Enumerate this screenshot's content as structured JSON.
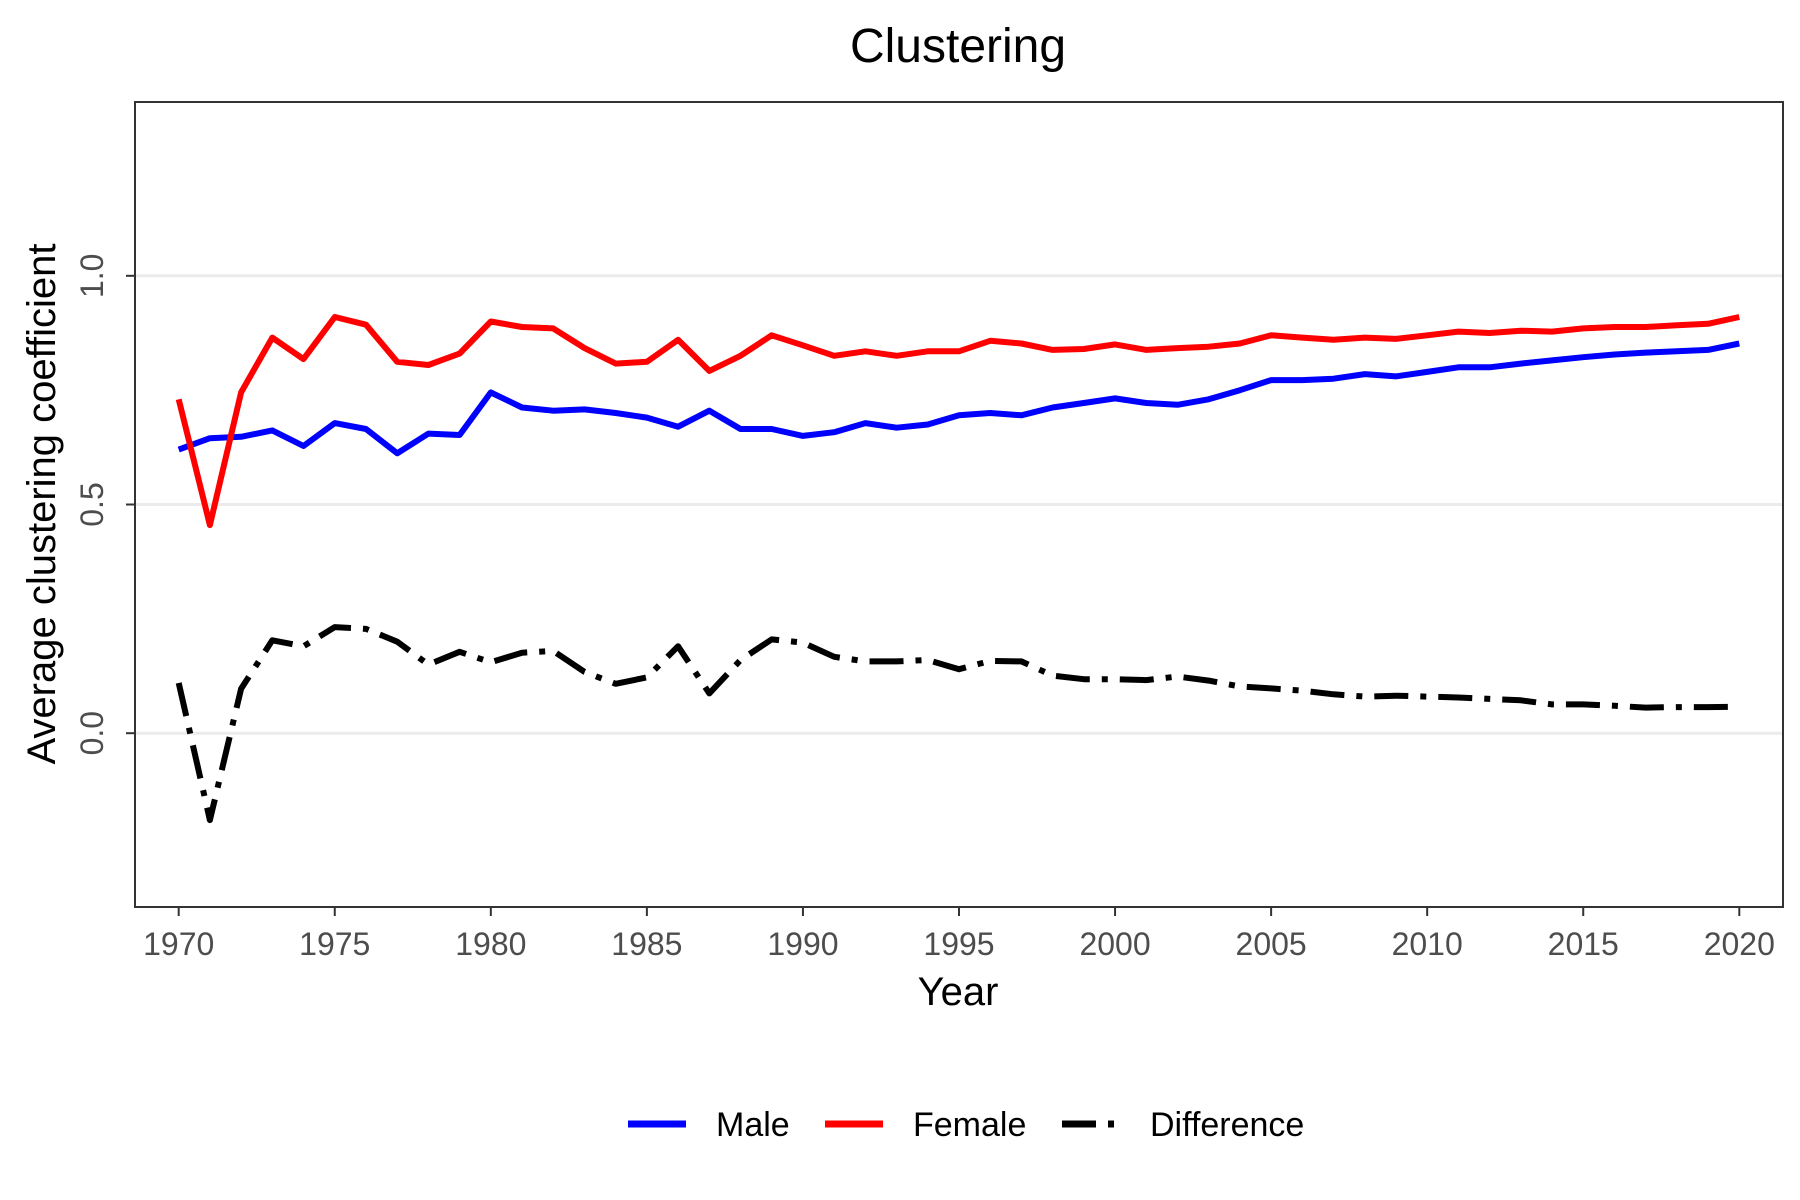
{
  "chart_data": {
    "type": "line",
    "title": "Clustering",
    "xlabel": "Year",
    "ylabel": "Average clustering coefficient",
    "xlim": [
      1968.6,
      2021.4
    ],
    "ylim": [
      -0.38,
      1.38
    ],
    "x_ticks": [
      "1970",
      "1975",
      "1980",
      "1985",
      "1990",
      "1995",
      "2000",
      "2005",
      "2010",
      "2015",
      "2020"
    ],
    "y_ticks": [
      "0.0",
      "0.5",
      "1.0"
    ],
    "grid": "horizontal major gridlines",
    "legend_position": "bottom",
    "x": [
      1970,
      1971,
      1972,
      1973,
      1974,
      1975,
      1976,
      1977,
      1978,
      1979,
      1980,
      1981,
      1982,
      1983,
      1984,
      1985,
      1986,
      1987,
      1988,
      1989,
      1990,
      1991,
      1992,
      1993,
      1994,
      1995,
      1996,
      1997,
      1998,
      1999,
      2000,
      2001,
      2002,
      2003,
      2004,
      2005,
      2006,
      2007,
      2008,
      2009,
      2010,
      2011,
      2012,
      2013,
      2014,
      2015,
      2016,
      2017,
      2018,
      2019,
      2020
    ],
    "series": [
      {
        "name": "Male",
        "color": "#0000ff",
        "style": "solid",
        "values": [
          0.62,
          0.645,
          0.648,
          0.662,
          0.628,
          0.678,
          0.665,
          0.612,
          0.655,
          0.652,
          0.745,
          0.712,
          0.705,
          0.708,
          0.7,
          0.69,
          0.67,
          0.705,
          0.665,
          0.665,
          0.65,
          0.658,
          0.678,
          0.668,
          0.675,
          0.695,
          0.7,
          0.695,
          0.712,
          0.722,
          0.732,
          0.722,
          0.718,
          0.73,
          0.75,
          0.772,
          0.772,
          0.775,
          0.785,
          0.78,
          0.79,
          0.8,
          0.8,
          0.808,
          0.815,
          0.822,
          0.828,
          0.832,
          0.835,
          0.838,
          0.852
        ]
      },
      {
        "name": "Female",
        "color": "#ff0000",
        "style": "solid",
        "values": [
          0.73,
          0.455,
          0.745,
          0.865,
          0.818,
          0.91,
          0.893,
          0.812,
          0.805,
          0.83,
          0.9,
          0.888,
          0.885,
          0.842,
          0.808,
          0.812,
          0.86,
          0.792,
          0.825,
          0.87,
          0.848,
          0.825,
          0.835,
          0.825,
          0.835,
          0.835,
          0.858,
          0.852,
          0.838,
          0.84,
          0.85,
          0.838,
          0.842,
          0.845,
          0.852,
          0.87,
          0.865,
          0.86,
          0.865,
          0.862,
          0.87,
          0.878,
          0.875,
          0.88,
          0.878,
          0.885,
          0.888,
          0.888,
          0.892,
          0.895,
          0.91
        ]
      },
      {
        "name": "Difference",
        "color": "#000000",
        "style": "dashed",
        "values": [
          0.11,
          -0.19,
          0.097,
          0.203,
          0.19,
          0.232,
          0.228,
          0.2,
          0.15,
          0.178,
          0.155,
          0.176,
          0.18,
          0.134,
          0.108,
          0.122,
          0.19,
          0.087,
          0.16,
          0.205,
          0.198,
          0.167,
          0.157,
          0.157,
          0.16,
          0.14,
          0.158,
          0.157,
          0.126,
          0.118,
          0.118,
          0.116,
          0.124,
          0.115,
          0.102,
          0.098,
          0.093,
          0.085,
          0.08,
          0.082,
          0.08,
          0.078,
          0.075,
          0.072,
          0.063,
          0.063,
          0.06,
          0.056,
          0.057,
          0.057,
          0.058
        ]
      }
    ]
  }
}
